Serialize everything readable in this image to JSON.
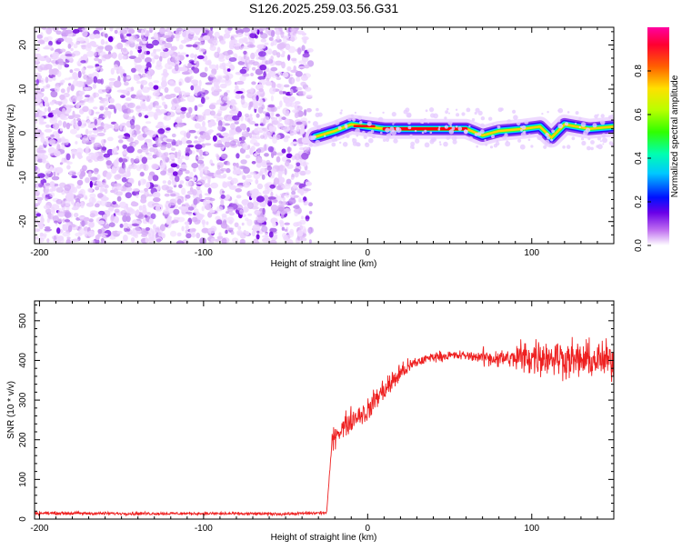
{
  "title": "S126.2025.259.03.56.G31",
  "chart_data": [
    {
      "type": "heatmap",
      "xlabel": "Height of straight line (km)",
      "ylabel": "Frequency (Hz)",
      "xlim": [
        -203,
        150
      ],
      "ylim": [
        -25,
        24
      ],
      "xticks": [
        -200,
        -100,
        0,
        100
      ],
      "yticks": [
        -20,
        -10,
        0,
        10,
        20
      ],
      "transition_x_km": -38,
      "ridge_freq_hz": 1,
      "ridge": [
        {
          "x": -32,
          "y": -0.8
        },
        {
          "x": -20,
          "y": 0.5
        },
        {
          "x": -10,
          "y": 2
        },
        {
          "x": 0,
          "y": 1.5
        },
        {
          "x": 10,
          "y": 1
        },
        {
          "x": 40,
          "y": 1
        },
        {
          "x": 60,
          "y": 1
        },
        {
          "x": 70,
          "y": -0.5
        },
        {
          "x": 80,
          "y": 0.5
        },
        {
          "x": 95,
          "y": 1
        },
        {
          "x": 105,
          "y": 1.5
        },
        {
          "x": 112,
          "y": -1
        },
        {
          "x": 120,
          "y": 2
        },
        {
          "x": 135,
          "y": 1
        },
        {
          "x": 150,
          "y": 1.5
        }
      ],
      "colorbar": {
        "label": "Normalized spectral amplitude",
        "ticks": [
          "0.0",
          "0.2",
          "0.4",
          "0.6",
          "0.8"
        ],
        "range": [
          0,
          1
        ]
      }
    },
    {
      "type": "line",
      "xlabel": "Height of straight line (km)",
      "ylabel": "SNR (10 * v/v)",
      "xlim": [
        -203,
        150
      ],
      "ylim": [
        0,
        550
      ],
      "xticks": [
        -200,
        -100,
        0,
        100
      ],
      "yticks": [
        0,
        100,
        200,
        300,
        400,
        500
      ],
      "color": "#ee2020",
      "series": [
        {
          "name": "SNR",
          "x": [
            -203,
            -150,
            -100,
            -50,
            -25,
            -22,
            -20,
            -15,
            -10,
            -5,
            0,
            5,
            10,
            15,
            20,
            30,
            40,
            50,
            60,
            70,
            80,
            90,
            100,
            110,
            120,
            130,
            140,
            150
          ],
          "values": [
            15,
            14,
            14,
            13,
            16,
            180,
            215,
            230,
            250,
            265,
            270,
            305,
            325,
            345,
            370,
            395,
            410,
            412,
            412,
            408,
            405,
            405,
            410,
            410,
            405,
            400,
            400,
            400
          ]
        }
      ]
    }
  ]
}
